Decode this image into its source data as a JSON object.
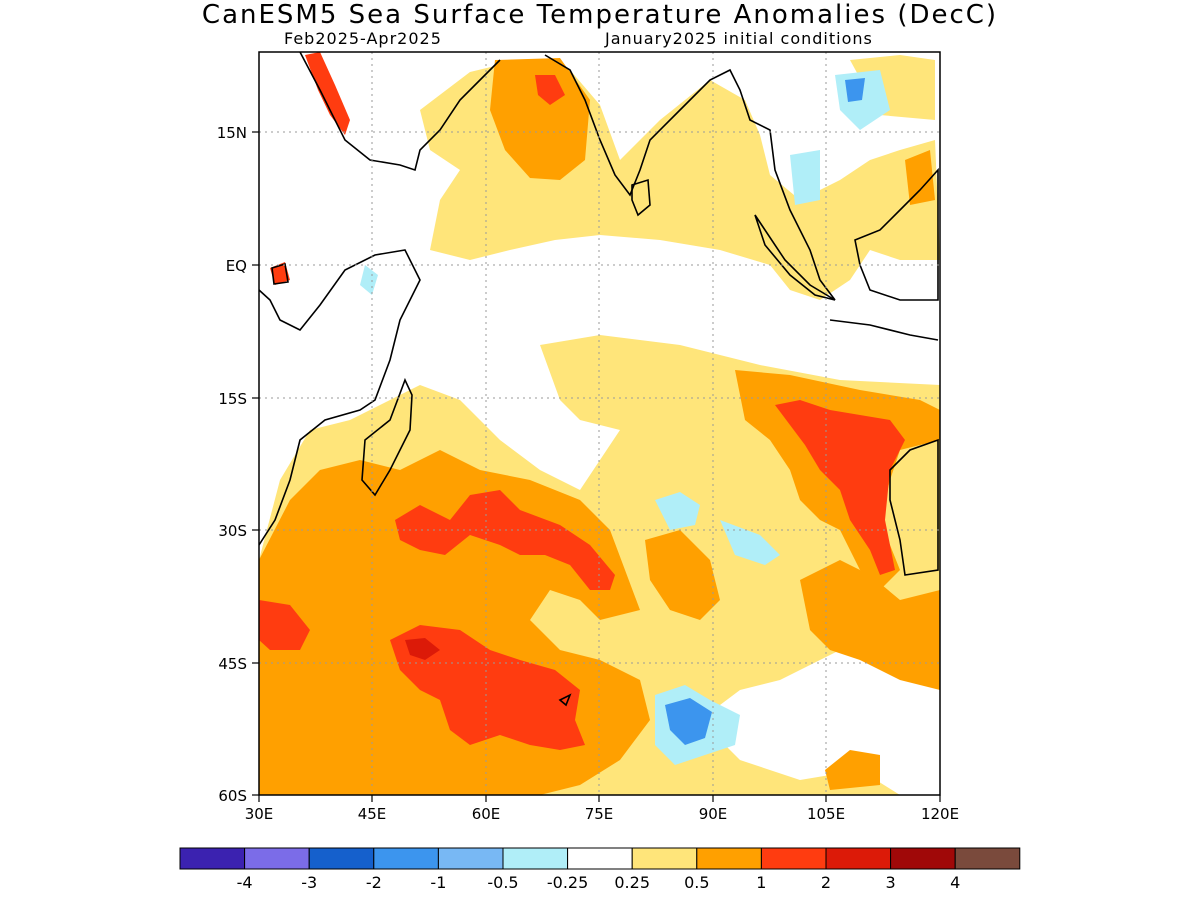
{
  "title": "CanESM5 Sea Surface Temperature Anomalies (DecC)",
  "subtitle_left": "Feb2025-Apr2025",
  "subtitle_right": "January2025 initial conditions",
  "map": {
    "lon_range": [
      30,
      120
    ],
    "lat_range": [
      -60,
      24
    ],
    "x_ticks": [
      "30E",
      "45E",
      "60E",
      "75E",
      "90E",
      "105E",
      "120E"
    ],
    "y_ticks": [
      "15N",
      "EQ",
      "15S",
      "30S",
      "45S",
      "60S"
    ],
    "grid": "dotted"
  },
  "colorbar": {
    "colors": [
      "#3b22b0",
      "#7b6ce8",
      "#1560cc",
      "#3c95ee",
      "#78b8f4",
      "#b0eef8",
      "#ffffff",
      "#ffe57a",
      "#ffa000",
      "#ff3c10",
      "#dc1a08",
      "#a00808",
      "#7a4a3c"
    ],
    "labels": [
      "-4",
      "-3",
      "-2",
      "-1",
      "-0.5",
      "-0.25",
      "0.25",
      "0.5",
      "1",
      "2",
      "3",
      "4"
    ]
  }
}
